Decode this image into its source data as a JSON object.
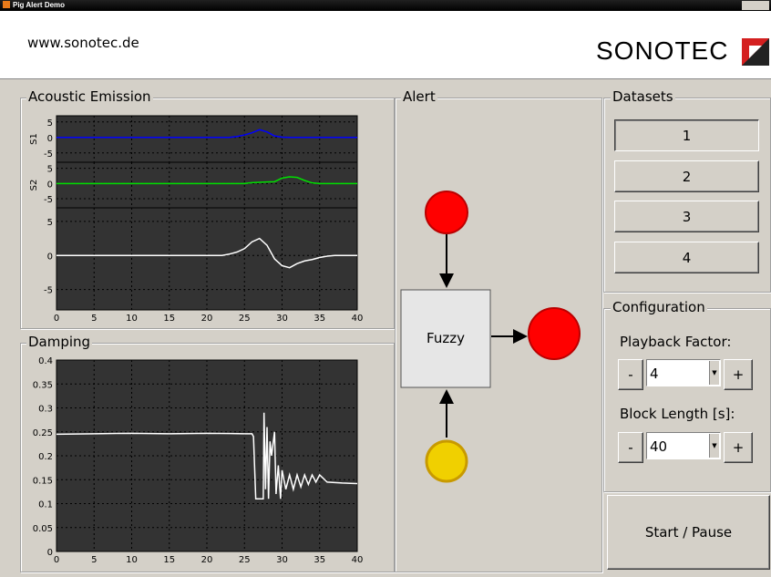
{
  "window": {
    "title": "Pig Alert Demo"
  },
  "header": {
    "url": "www.sonotec.de",
    "logo": "SONOTEC"
  },
  "panels": {
    "acoustic_emission": "Acoustic Emission",
    "damping": "Damping",
    "alert": "Alert",
    "datasets": "Datasets",
    "configuration": "Configuration"
  },
  "chart_data": [
    {
      "type": "line",
      "ylabel": "S1",
      "show_xtick_labels": false,
      "grid": true,
      "x": [
        0,
        1,
        2,
        3,
        4,
        5,
        6,
        7,
        8,
        9,
        10,
        11,
        12,
        13,
        14,
        15,
        16,
        17,
        18,
        19,
        20,
        21,
        22,
        23,
        24,
        25,
        26,
        27,
        28,
        29,
        30,
        31,
        32,
        33,
        34,
        35,
        36,
        37,
        38,
        39,
        40
      ],
      "series": [
        {
          "color": "#0000ff",
          "values": [
            0,
            0,
            0,
            0,
            0,
            0,
            0,
            0,
            0,
            0,
            0,
            0,
            0,
            0,
            0,
            0,
            0,
            0,
            0,
            0,
            0,
            0,
            0,
            0,
            0.3,
            0.8,
            1.5,
            2.5,
            1.8,
            0.5,
            0.1,
            0,
            0,
            0,
            0,
            0,
            0,
            0,
            0,
            0,
            0
          ]
        }
      ],
      "xlim": [
        0,
        40
      ],
      "xticks": [
        0,
        5,
        10,
        15,
        20,
        25,
        30,
        35,
        40
      ],
      "ylim": [
        -8,
        7
      ],
      "yticks": [
        -5,
        0,
        5
      ]
    },
    {
      "type": "line",
      "ylabel": "S2",
      "show_xtick_labels": false,
      "grid": true,
      "x": [
        0,
        1,
        2,
        3,
        4,
        5,
        6,
        7,
        8,
        9,
        10,
        11,
        12,
        13,
        14,
        15,
        16,
        17,
        18,
        19,
        20,
        21,
        22,
        23,
        24,
        25,
        26,
        27,
        28,
        29,
        30,
        31,
        32,
        33,
        34,
        35,
        36,
        37,
        38,
        39,
        40
      ],
      "series": [
        {
          "color": "#00e000",
          "values": [
            0,
            0,
            0,
            0,
            0,
            0,
            0,
            0,
            0,
            0,
            0,
            0,
            0,
            0,
            0,
            0,
            0,
            0,
            0,
            0,
            0,
            0,
            0,
            0,
            0,
            0,
            0.3,
            0.4,
            0.5,
            0.6,
            1.8,
            2.2,
            2,
            1,
            0.2,
            0,
            0,
            0,
            0,
            0,
            0
          ]
        }
      ],
      "xlim": [
        0,
        40
      ],
      "xticks": [
        0,
        5,
        10,
        15,
        20,
        25,
        30,
        35,
        40
      ],
      "ylim": [
        -8,
        7
      ],
      "yticks": [
        -5,
        0,
        5
      ]
    },
    {
      "type": "line",
      "show_xtick_labels": true,
      "grid": true,
      "x": [
        0,
        1,
        2,
        3,
        4,
        5,
        6,
        7,
        8,
        9,
        10,
        11,
        12,
        13,
        14,
        15,
        16,
        17,
        18,
        19,
        20,
        21,
        22,
        23,
        24,
        25,
        26,
        27,
        28,
        29,
        30,
        31,
        32,
        33,
        34,
        35,
        36,
        37,
        38,
        39,
        40
      ],
      "series": [
        {
          "color": "#ffffff",
          "values": [
            0,
            0,
            0,
            0,
            0,
            0,
            0,
            0,
            0,
            0,
            0,
            0,
            0,
            0,
            0,
            0,
            0,
            0,
            0,
            0,
            0,
            0,
            0,
            0.2,
            0.5,
            1,
            2,
            2.5,
            1.5,
            -0.5,
            -1.5,
            -1.8,
            -1.2,
            -0.8,
            -0.6,
            -0.3,
            -0.1,
            0,
            0,
            0,
            0
          ]
        }
      ],
      "xlim": [
        0,
        40
      ],
      "xticks": [
        0,
        5,
        10,
        15,
        20,
        25,
        30,
        35,
        40
      ],
      "ylim": [
        -8,
        7
      ],
      "yticks": [
        -5,
        0,
        5
      ]
    },
    {
      "type": "line",
      "show_xtick_labels": true,
      "grid": true,
      "x": [
        0,
        5,
        10,
        15,
        20,
        25,
        26,
        26.2,
        26.5,
        26.6,
        27.5,
        27.6,
        27.8,
        28,
        28.2,
        28.4,
        28.6,
        29,
        29.2,
        29.5,
        29.8,
        30,
        30.5,
        31,
        31.5,
        32,
        32.5,
        33,
        33.5,
        34,
        34.5,
        35,
        36,
        38,
        40
      ],
      "series": [
        {
          "color": "#ffffff",
          "values": [
            0.245,
            0.246,
            0.247,
            0.246,
            0.247,
            0.246,
            0.246,
            0.24,
            0.11,
            0.11,
            0.11,
            0.29,
            0.13,
            0.26,
            0.11,
            0.23,
            0.2,
            0.25,
            0.12,
            0.18,
            0.11,
            0.17,
            0.13,
            0.16,
            0.13,
            0.16,
            0.135,
            0.16,
            0.14,
            0.16,
            0.145,
            0.16,
            0.145,
            0.143,
            0.142
          ]
        }
      ],
      "xlim": [
        0,
        40
      ],
      "xticks": [
        0,
        5,
        10,
        15,
        20,
        25,
        30,
        35,
        40
      ],
      "ylim": [
        0,
        0.4
      ],
      "yticks": [
        0,
        0.05,
        0.1,
        0.15,
        0.2,
        0.25,
        0.3,
        0.35,
        0.4
      ]
    }
  ],
  "alert": {
    "fuzzy": "Fuzzy",
    "input_top_color": "#ff0000",
    "input_bottom_color": "#f0d000",
    "output_color": "#ff0000"
  },
  "datasets": [
    "1",
    "2",
    "3",
    "4"
  ],
  "configuration": {
    "playback_label": "Playback Factor:",
    "playback_value": "4",
    "block_label": "Block Length [s]:",
    "block_value": "40",
    "minus": "-",
    "plus": "+"
  },
  "start_pause": "Start / Pause"
}
